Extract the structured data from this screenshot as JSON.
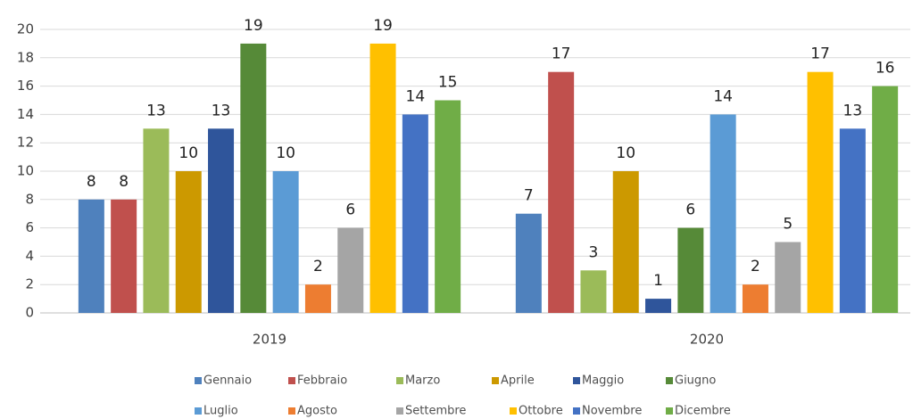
{
  "chart_data": {
    "type": "bar",
    "categories": [
      "2019",
      "2020"
    ],
    "series": [
      {
        "name": "Gennaio",
        "color": "#4f81bd",
        "values": [
          8,
          7
        ]
      },
      {
        "name": "Febbraio",
        "color": "#c0504d",
        "values": [
          8,
          17
        ]
      },
      {
        "name": "Marzo",
        "color": "#9bbb59",
        "values": [
          13,
          3
        ]
      },
      {
        "name": "Aprile",
        "color": "#cc9900",
        "values": [
          10,
          10
        ]
      },
      {
        "name": "Maggio",
        "color": "#2f559b",
        "values": [
          13,
          1
        ]
      },
      {
        "name": "Giugno",
        "color": "#568a38",
        "values": [
          19,
          6
        ]
      },
      {
        "name": "Luglio",
        "color": "#5b9bd5",
        "values": [
          10,
          14
        ]
      },
      {
        "name": "Agosto",
        "color": "#ed7d31",
        "values": [
          2,
          2
        ]
      },
      {
        "name": "Settembre",
        "color": "#a5a5a5",
        "values": [
          6,
          5
        ]
      },
      {
        "name": "Ottobre",
        "color": "#ffc000",
        "values": [
          19,
          17
        ]
      },
      {
        "name": "Novembre",
        "color": "#4472c4",
        "values": [
          14,
          13
        ]
      },
      {
        "name": "Dicembre",
        "color": "#70ad47",
        "values": [
          15,
          16
        ]
      }
    ],
    "ylim": [
      0,
      20
    ],
    "yticks": [
      0,
      2,
      4,
      6,
      8,
      10,
      12,
      14,
      16,
      18,
      20
    ],
    "grid": true,
    "legend": "bottom"
  }
}
